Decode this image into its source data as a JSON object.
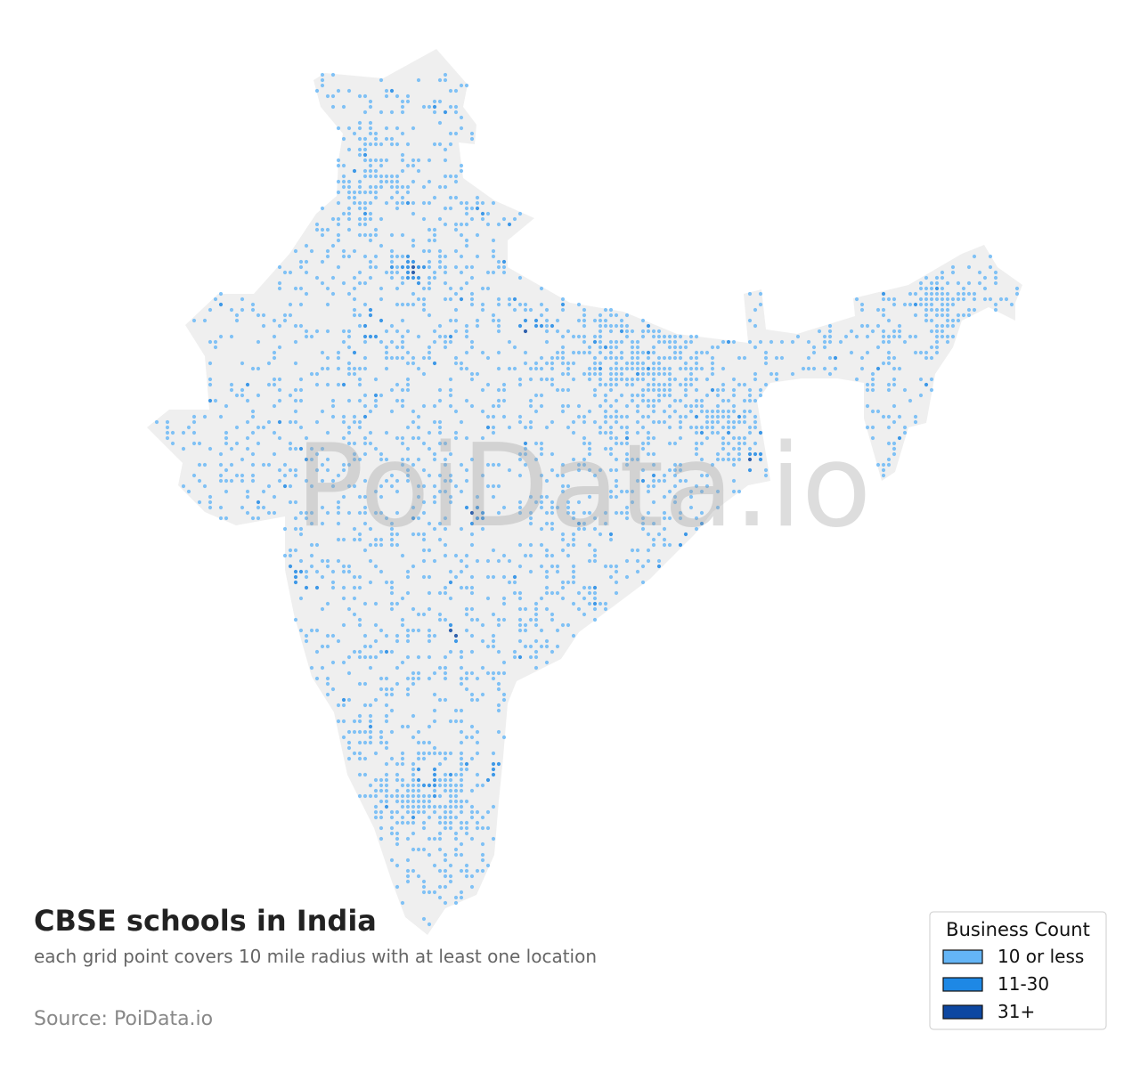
{
  "title": "CBSE schools in India",
  "subtitle": "each grid point covers 10 mile radius with at least one location",
  "source": "Source: PoiData.io",
  "watermark": "PoiData.io",
  "legend": {
    "title": "Business Count",
    "items": [
      {
        "label": "10 or less",
        "color": "#64b5f6"
      },
      {
        "label": "11-30",
        "color": "#1e88e5"
      },
      {
        "label": "31+",
        "color": "#0d47a1"
      }
    ]
  }
}
